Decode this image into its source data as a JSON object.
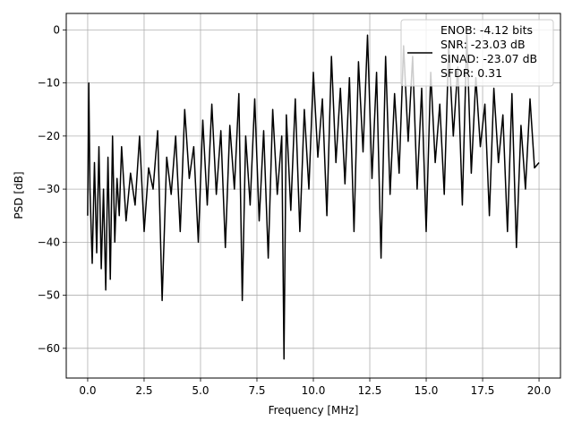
{
  "chart_data": {
    "type": "line",
    "title": "",
    "xlabel": "Frequency [MHz]",
    "ylabel": "PSD [dB]",
    "xlim": [
      -0.95,
      20.95
    ],
    "ylim": [
      -65.6,
      3.1
    ],
    "grid": true,
    "xticks": [
      0.0,
      2.5,
      5.0,
      7.5,
      10.0,
      12.5,
      15.0,
      17.5,
      20.0
    ],
    "xtick_labels": [
      "0.0",
      "2.5",
      "5.0",
      "7.5",
      "10.0",
      "12.5",
      "15.0",
      "17.5",
      "20.0"
    ],
    "yticks": [
      0,
      -10,
      -20,
      -30,
      -40,
      -50,
      -60
    ],
    "ytick_labels": [
      "0",
      "−10",
      "−20",
      "−30",
      "−40",
      "−50",
      "−60"
    ],
    "legend_position": "top-right",
    "legend": [
      "ENOB: -4.12 bits",
      "SNR: -23.03 dB",
      "SINAD: -23.07 dB",
      "SFDR: 0.31"
    ],
    "line_color": "#000000",
    "series": [
      {
        "x": [
          0.0,
          0.05,
          0.1,
          0.2,
          0.3,
          0.4,
          0.5,
          0.6,
          0.7,
          0.8,
          0.9,
          1.0,
          1.1,
          1.2,
          1.3,
          1.4,
          1.5,
          1.7,
          1.9,
          2.1,
          2.3,
          2.5,
          2.7,
          2.9,
          3.1,
          3.3,
          3.5,
          3.7,
          3.9,
          4.1,
          4.3,
          4.5,
          4.7,
          4.9,
          5.1,
          5.3,
          5.5,
          5.7,
          5.9,
          6.1,
          6.3,
          6.5,
          6.7,
          6.85,
          7.0,
          7.2,
          7.4,
          7.6,
          7.8,
          8.0,
          8.2,
          8.4,
          8.6,
          8.7,
          8.8,
          9.0,
          9.2,
          9.4,
          9.6,
          9.8,
          10.0,
          10.2,
          10.4,
          10.6,
          10.8,
          11.0,
          11.2,
          11.4,
          11.6,
          11.8,
          12.0,
          12.2,
          12.4,
          12.6,
          12.8,
          13.0,
          13.2,
          13.4,
          13.6,
          13.8,
          14.0,
          14.2,
          14.4,
          14.6,
          14.8,
          15.0,
          15.2,
          15.4,
          15.6,
          15.8,
          16.0,
          16.2,
          16.4,
          16.6,
          16.8,
          17.0,
          17.2,
          17.4,
          17.6,
          17.8,
          18.0,
          18.2,
          18.4,
          18.6,
          18.8,
          19.0,
          19.2,
          19.4,
          19.6,
          19.8,
          20.0
        ],
        "y": [
          -35,
          -10,
          -30,
          -44,
          -25,
          -42,
          -22,
          -45,
          -30,
          -49,
          -24,
          -47,
          -20,
          -40,
          -28,
          -35,
          -22,
          -36,
          -27,
          -33,
          -20,
          -38,
          -26,
          -30,
          -19,
          -51,
          -24,
          -31,
          -20,
          -38,
          -15,
          -28,
          -22,
          -40,
          -17,
          -33,
          -14,
          -31,
          -19,
          -41,
          -18,
          -30,
          -12,
          -51,
          -20,
          -33,
          -13,
          -36,
          -19,
          -43,
          -15,
          -31,
          -20,
          -62,
          -16,
          -34,
          -13,
          -38,
          -15,
          -30,
          -8,
          -24,
          -13,
          -35,
          -5,
          -25,
          -11,
          -29,
          -9,
          -38,
          -6,
          -23,
          -1,
          -28,
          -8,
          -43,
          -5,
          -31,
          -12,
          -27,
          -3,
          -21,
          -5,
          -30,
          -11,
          -38,
          -8,
          -25,
          -14,
          -31,
          -3,
          -20,
          -7,
          -33,
          -1,
          -27,
          -9,
          -22,
          -14,
          -35,
          -11,
          -25,
          -16,
          -38,
          -12,
          -41,
          -18,
          -30,
          -13,
          -26,
          -25
        ]
      }
    ]
  }
}
